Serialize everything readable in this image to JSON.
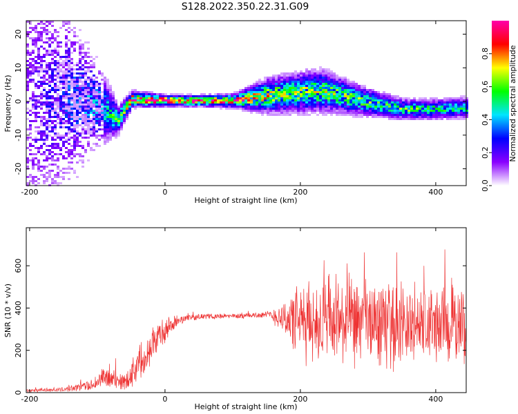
{
  "title": "S128.2022.350.22.31.G09",
  "chart_data": [
    {
      "type": "heatmap",
      "xlabel": "Height of straight line (km)",
      "ylabel": "Frequency (Hz)",
      "xlim": [
        -205,
        445
      ],
      "ylim": [
        -25,
        24
      ],
      "xticks": [
        -200,
        0,
        200,
        400
      ],
      "yticks": [
        -20,
        -10,
        0,
        10,
        20
      ],
      "colorbar": {
        "label": "Normalized spectral amplitude",
        "range": [
          0,
          1
        ],
        "ticks": [
          0.0,
          0.2,
          0.4,
          0.6,
          0.8
        ],
        "colors": [
          "#ffffff",
          "#8a00ff",
          "#0000ff",
          "#00e5ff",
          "#00ff00",
          "#ffff00",
          "#ff0000",
          "#ff00aa"
        ]
      },
      "ridge": [
        {
          "x": -200,
          "f": 0,
          "amp": 0.15,
          "spread": 22
        },
        {
          "x": -150,
          "f": 2,
          "amp": 0.25,
          "spread": 14
        },
        {
          "x": -100,
          "f": -1,
          "amp": 0.35,
          "spread": 6
        },
        {
          "x": -70,
          "f": -5,
          "amp": 0.5,
          "spread": 2
        },
        {
          "x": -50,
          "f": 1,
          "amp": 0.75,
          "spread": 1.2
        },
        {
          "x": 0,
          "f": 0.5,
          "amp": 0.9,
          "spread": 0.8
        },
        {
          "x": 50,
          "f": 0.5,
          "amp": 0.85,
          "spread": 0.8
        },
        {
          "x": 100,
          "f": 0.5,
          "amp": 0.75,
          "spread": 1
        },
        {
          "x": 150,
          "f": 2,
          "amp": 0.6,
          "spread": 2.5
        },
        {
          "x": 200,
          "f": 3,
          "amp": 0.55,
          "spread": 3
        },
        {
          "x": 230,
          "f": 3.5,
          "amp": 0.55,
          "spread": 3
        },
        {
          "x": 300,
          "f": 0,
          "amp": 0.5,
          "spread": 2
        },
        {
          "x": 350,
          "f": -2,
          "amp": 0.5,
          "spread": 1.5
        },
        {
          "x": 400,
          "f": -2,
          "amp": 0.45,
          "spread": 1.5
        },
        {
          "x": 445,
          "f": -1.5,
          "amp": 0.45,
          "spread": 1.5
        }
      ]
    },
    {
      "type": "line",
      "xlabel": "Height of straight line (km)",
      "ylabel": "SNR (10 * v/v)",
      "xlim": [
        -205,
        445
      ],
      "ylim": [
        0,
        780
      ],
      "xticks": [
        -200,
        0,
        200,
        400
      ],
      "yticks": [
        0,
        200,
        400,
        600
      ],
      "color": "#ee3333",
      "envelope": [
        {
          "x": -205,
          "mean": 10,
          "noise": 8
        },
        {
          "x": -150,
          "mean": 15,
          "noise": 10
        },
        {
          "x": -110,
          "mean": 35,
          "noise": 25
        },
        {
          "x": -90,
          "mean": 70,
          "noise": 50
        },
        {
          "x": -60,
          "mean": 50,
          "noise": 40
        },
        {
          "x": -40,
          "mean": 130,
          "noise": 80
        },
        {
          "x": -20,
          "mean": 230,
          "noise": 90
        },
        {
          "x": 0,
          "mean": 290,
          "noise": 60
        },
        {
          "x": 20,
          "mean": 345,
          "noise": 20
        },
        {
          "x": 50,
          "mean": 360,
          "noise": 12
        },
        {
          "x": 100,
          "mean": 362,
          "noise": 12
        },
        {
          "x": 150,
          "mean": 368,
          "noise": 15
        },
        {
          "x": 170,
          "mean": 360,
          "noise": 60
        },
        {
          "x": 200,
          "mean": 330,
          "noise": 180
        },
        {
          "x": 250,
          "mean": 330,
          "noise": 200
        },
        {
          "x": 300,
          "mean": 330,
          "noise": 200
        },
        {
          "x": 350,
          "mean": 320,
          "noise": 190
        },
        {
          "x": 400,
          "mean": 320,
          "noise": 180
        },
        {
          "x": 445,
          "mean": 320,
          "noise": 180
        }
      ]
    }
  ]
}
